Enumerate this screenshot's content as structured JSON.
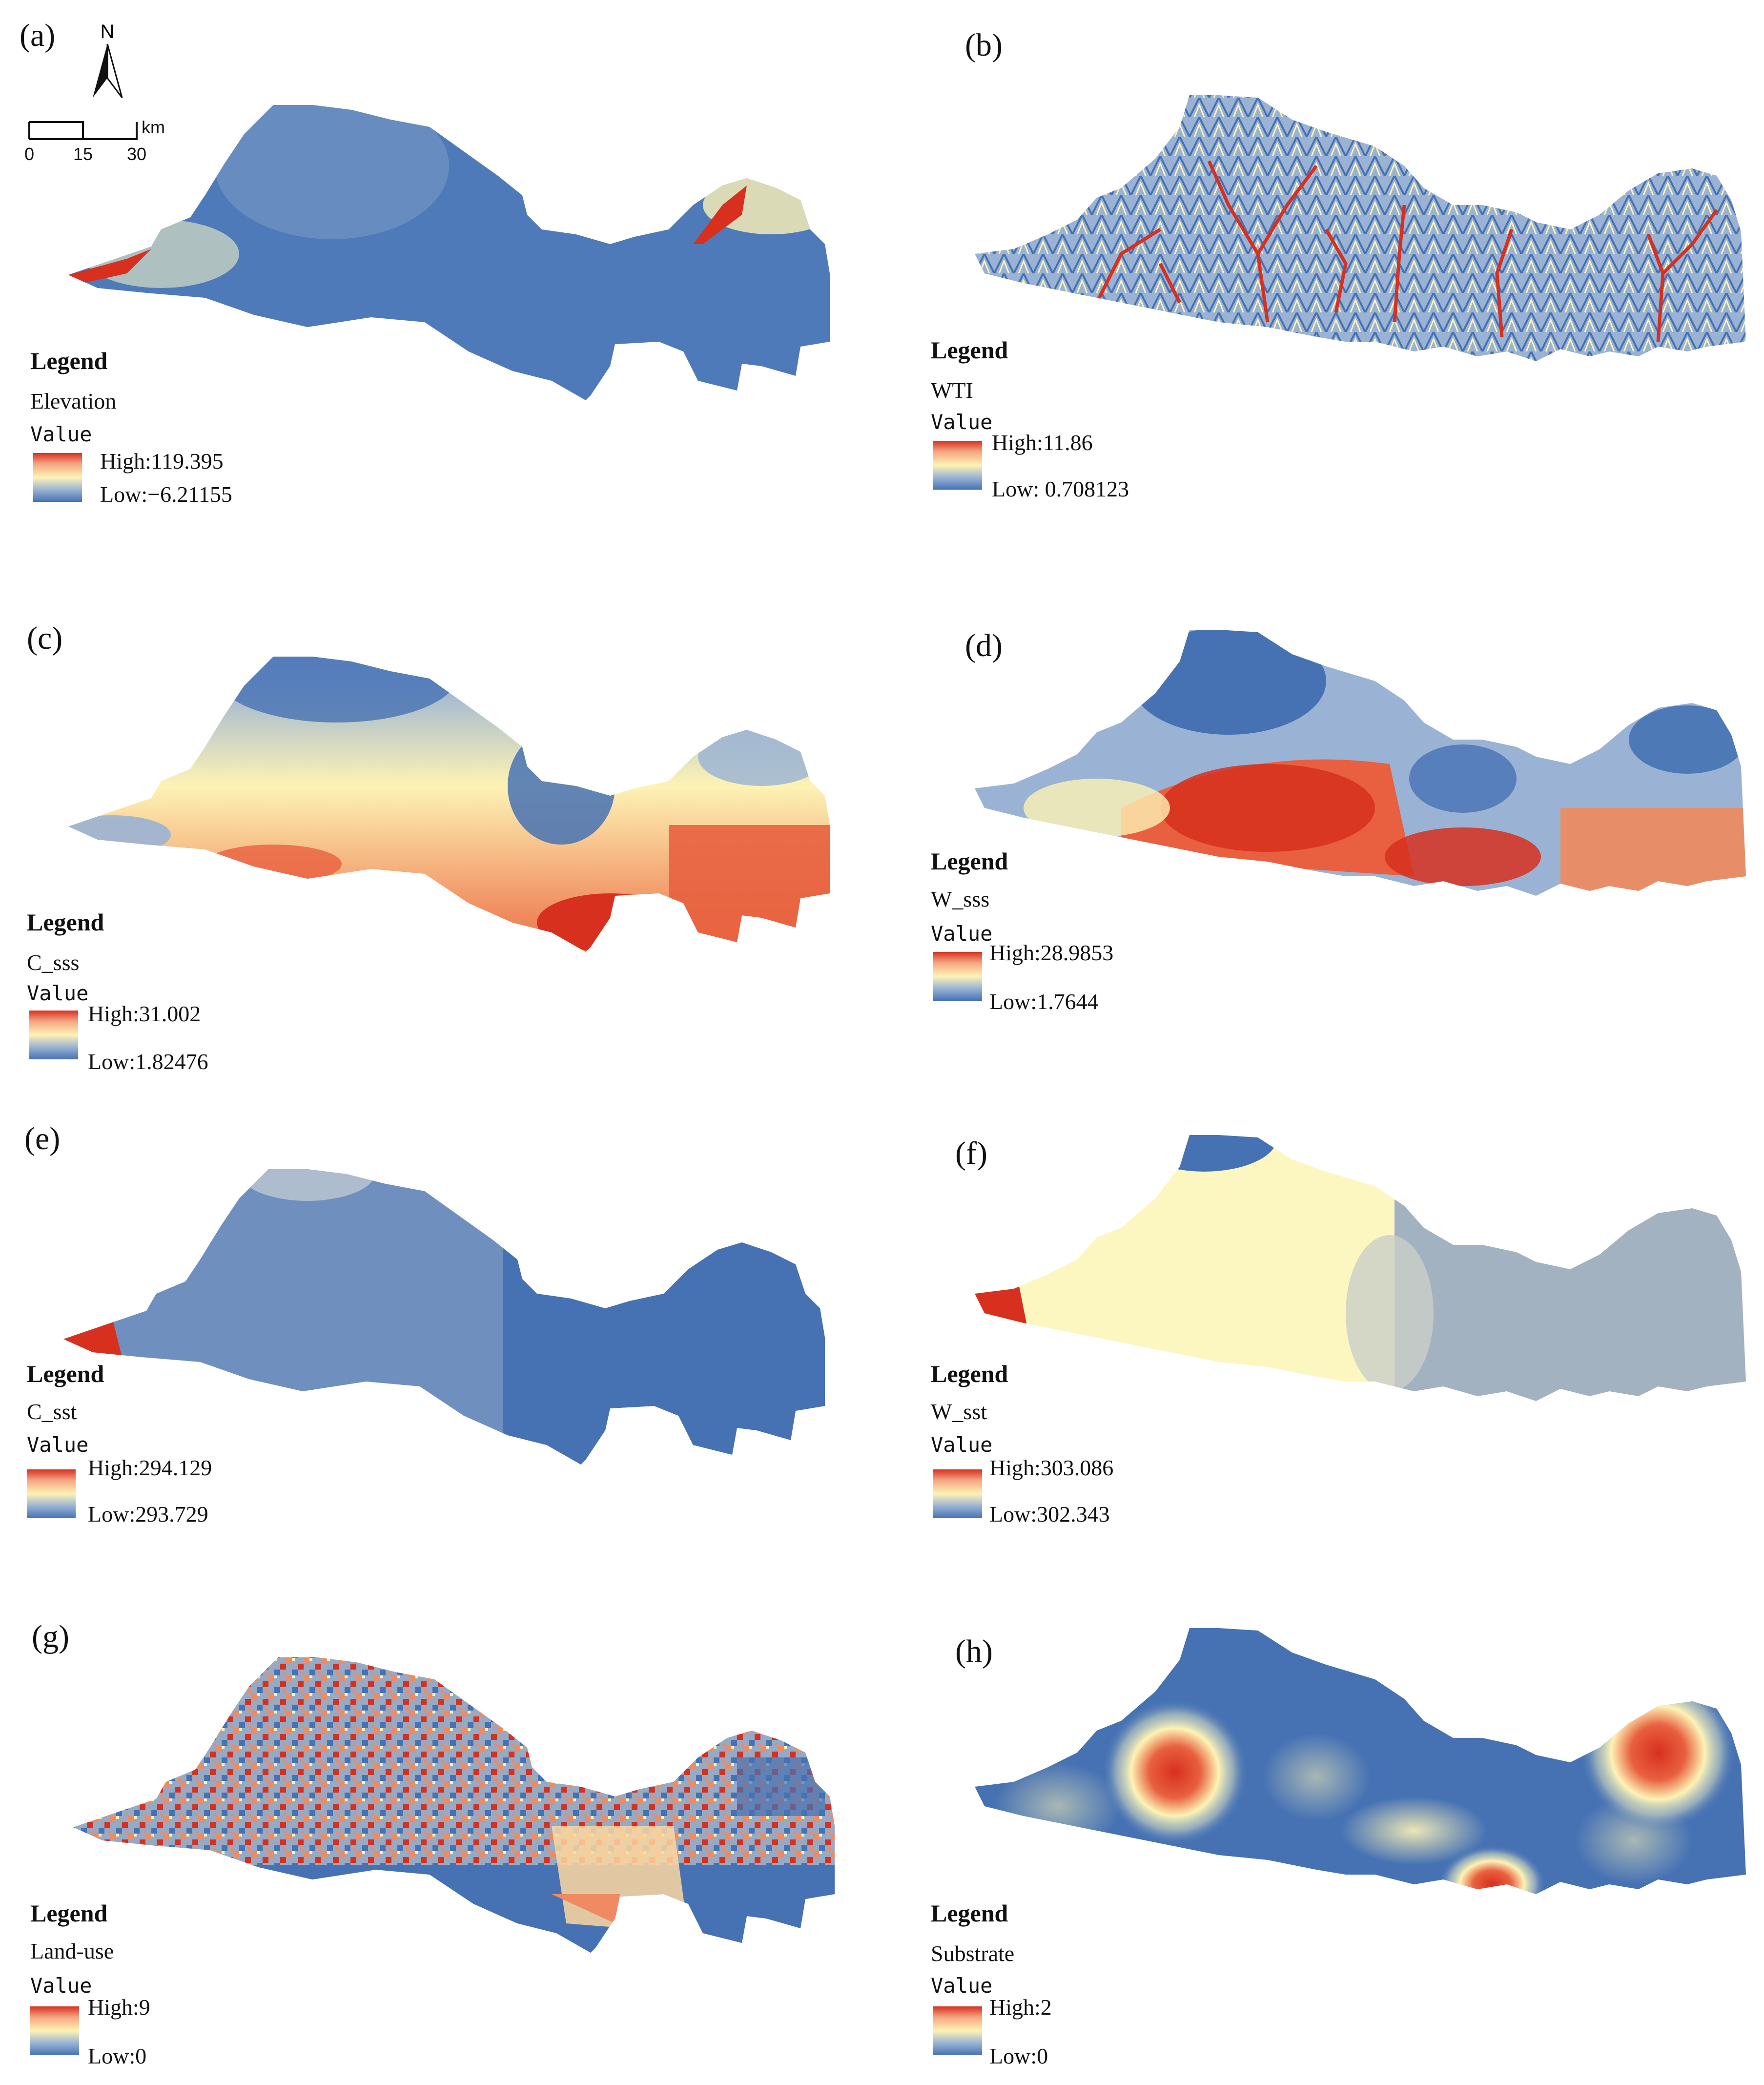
{
  "north_arrow": {
    "label": "N"
  },
  "scale_bar": {
    "ticks": [
      "0",
      "15",
      "30"
    ],
    "unit": "km"
  },
  "legend_heading": "Legend",
  "value_heading": "Value",
  "ramp_colors": [
    "#d7301f",
    "#f4a582",
    "#fdf3b5",
    "#9ab3d4",
    "#4672b4"
  ],
  "panels": [
    {
      "label": "(a)",
      "layer": "Elevation",
      "high": "High:119.395",
      "low": "Low:−6.21155"
    },
    {
      "label": "(b)",
      "layer": "WTI",
      "high": "High:11.86",
      "low": "Low: 0.708123"
    },
    {
      "label": "(c)",
      "layer": "C_sss",
      "high": "High:31.002",
      "low": "Low:1.82476"
    },
    {
      "label": "(d)",
      "layer": "W_sss",
      "high": "High:28.9853",
      "low": "Low:1.7644"
    },
    {
      "label": "(e)",
      "layer": "C_sst",
      "high": "High:294.129",
      "low": "Low:293.729"
    },
    {
      "label": "(f)",
      "layer": "W_sst",
      "high": "High:303.086",
      "low": "Low:302.343"
    },
    {
      "label": "(g)",
      "layer": "Land-use",
      "high": "High:9",
      "low": "Low:0"
    },
    {
      "label": "(h)",
      "layer": "Substrate",
      "high": "High:2",
      "low": "Low:0"
    }
  ]
}
